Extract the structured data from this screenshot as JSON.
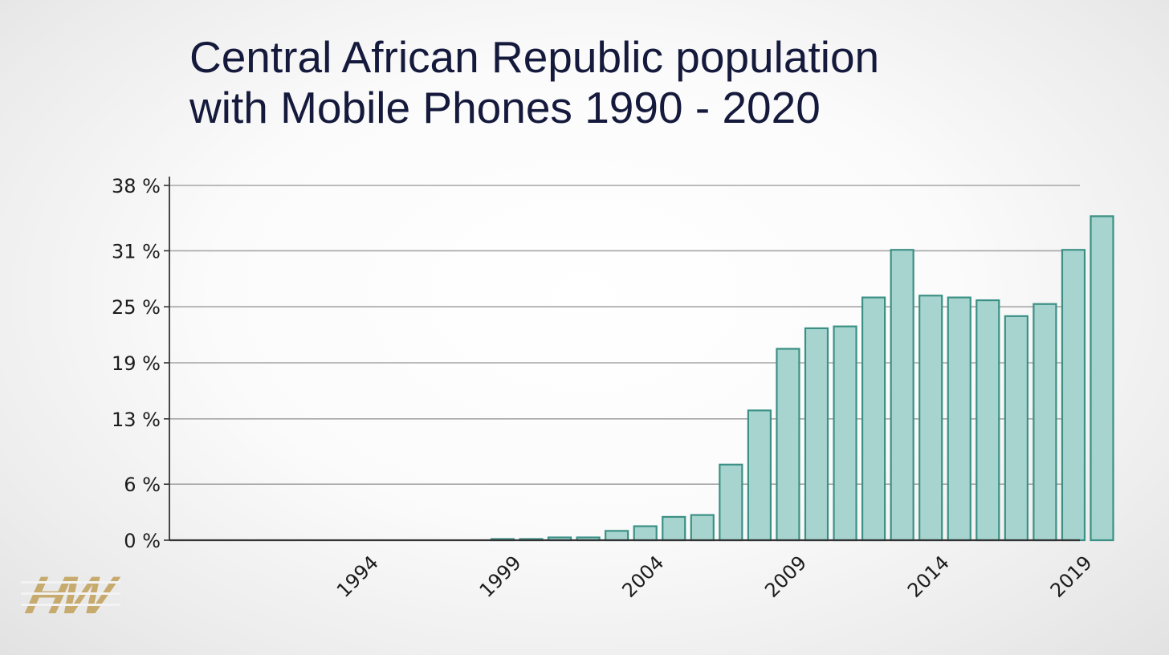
{
  "title": {
    "line1": "Central African Republic population",
    "line2": "with Mobile Phones 1990 - 2020"
  },
  "logo": {
    "text": "HW",
    "color": "#c7ab6e"
  },
  "chart_data": {
    "type": "bar",
    "title": "Central African Republic population with Mobile Phones 1990 - 2020",
    "xlabel": "",
    "ylabel": "",
    "x": [
      1990,
      1991,
      1992,
      1993,
      1994,
      1995,
      1996,
      1997,
      1998,
      1999,
      2000,
      2001,
      2002,
      2003,
      2004,
      2005,
      2006,
      2007,
      2008,
      2009,
      2010,
      2011,
      2012,
      2013,
      2014,
      2015,
      2016,
      2017,
      2018,
      2019,
      2020
    ],
    "values": [
      0,
      0,
      0,
      0,
      0,
      0,
      0,
      0,
      0,
      0.1,
      0.1,
      0.3,
      0.3,
      1.0,
      1.5,
      2.5,
      2.7,
      8.1,
      13.9,
      20.5,
      22.7,
      22.9,
      26.0,
      31.1,
      26.2,
      26.0,
      25.7,
      24.0,
      25.3,
      31.1,
      34.7
    ],
    "ylim": [
      0,
      38
    ],
    "yticks": [
      0,
      6,
      13,
      19,
      25,
      31,
      38
    ],
    "ytick_labels": [
      "0 %",
      "6 %",
      "13 %",
      "19 %",
      "25 %",
      "31 %",
      "38 %"
    ],
    "xtick_labels": [
      "1994",
      "1999",
      "2004",
      "2009",
      "2014",
      "2019"
    ],
    "grid": true,
    "colors": {
      "bar_fill": "#a8d4cf",
      "bar_stroke": "#3b9085",
      "grid": "#a6a6a6",
      "axis": "#333333",
      "title": "#151a3c"
    }
  }
}
